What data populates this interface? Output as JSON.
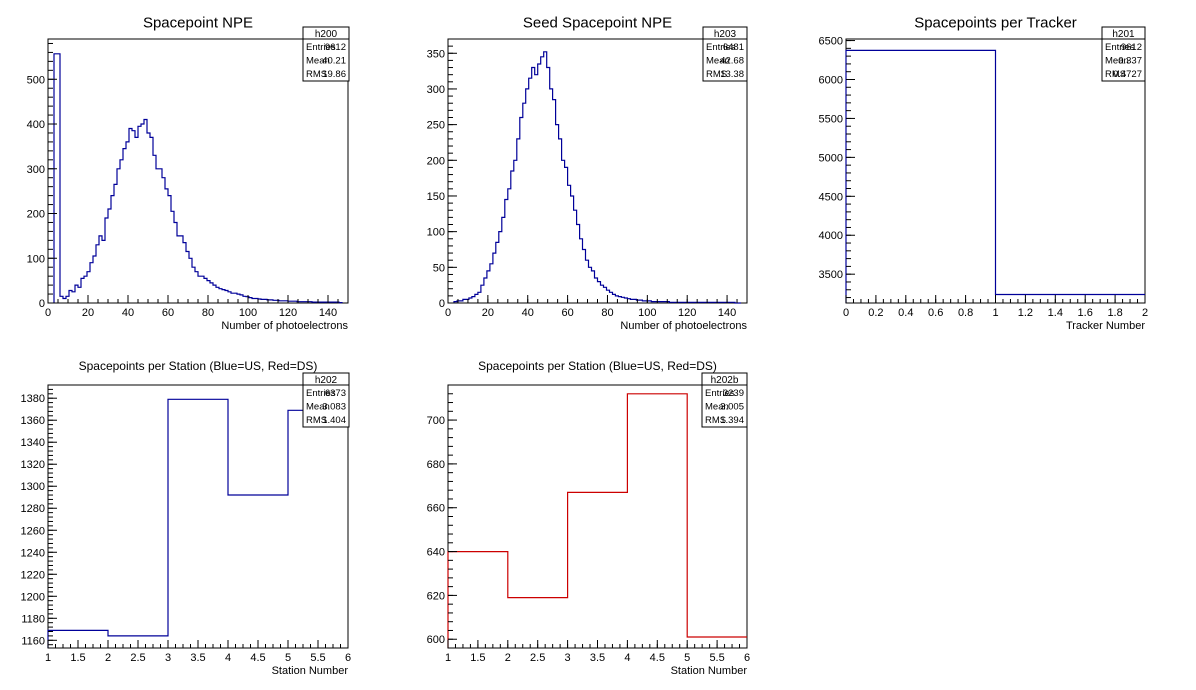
{
  "chart_data": [
    {
      "type": "bar",
      "title": "Spacepoint NPE",
      "xlabel": "Number of photoelectrons",
      "ylabel": "",
      "color": "#000099",
      "xlim": [
        0,
        150
      ],
      "ylim": [
        0,
        590
      ],
      "xticks": [
        "0",
        "20",
        "40",
        "60",
        "80",
        "100",
        "120",
        "140"
      ],
      "yticks": [
        "0",
        "100",
        "200",
        "300",
        "400",
        "500"
      ],
      "stats": {
        "name": "h200",
        "rows": [
          [
            "Entries",
            "9612"
          ],
          [
            "Mean",
            "40.21"
          ],
          [
            "RMS",
            "19.86"
          ]
        ]
      },
      "bin_width": 1.5,
      "x0": 3,
      "values": [
        557,
        557,
        15,
        10,
        15,
        28,
        25,
        40,
        35,
        55,
        60,
        70,
        90,
        105,
        130,
        150,
        140,
        190,
        210,
        240,
        265,
        300,
        320,
        345,
        360,
        390,
        385,
        370,
        395,
        400,
        410,
        380,
        370,
        330,
        300,
        300,
        280,
        255,
        240,
        205,
        180,
        150,
        150,
        135,
        115,
        100,
        80,
        70,
        60,
        60,
        55,
        50,
        45,
        40,
        35,
        32,
        30,
        28,
        25,
        22,
        22,
        20,
        18,
        15,
        14,
        12,
        10,
        10,
        9,
        8,
        8,
        7,
        7,
        6,
        6,
        5,
        5,
        5,
        4,
        4,
        4,
        3,
        3,
        3,
        3,
        3,
        2,
        2,
        2,
        2,
        2,
        2,
        2,
        2,
        2,
        1
      ]
    },
    {
      "type": "bar",
      "title": "Seed Spacepoint NPE",
      "xlabel": "Number of photoelectrons",
      "ylabel": "",
      "color": "#000099",
      "xlim": [
        0,
        150
      ],
      "ylim": [
        0,
        370
      ],
      "xticks": [
        "0",
        "20",
        "40",
        "60",
        "80",
        "100",
        "120",
        "140"
      ],
      "yticks": [
        "0",
        "50",
        "100",
        "150",
        "200",
        "250",
        "300",
        "350"
      ],
      "stats": {
        "name": "h203",
        "rows": [
          [
            "Entries",
            "6481"
          ],
          [
            "Mean",
            "42.68"
          ],
          [
            "RMS",
            "13.38"
          ]
        ]
      },
      "bin_width": 1.5,
      "x0": 3,
      "values": [
        2,
        3,
        3,
        5,
        5,
        7,
        9,
        12,
        15,
        25,
        35,
        45,
        55,
        70,
        85,
        100,
        120,
        145,
        160,
        185,
        200,
        230,
        260,
        280,
        300,
        315,
        330,
        320,
        335,
        345,
        352,
        330,
        300,
        285,
        250,
        230,
        200,
        190,
        165,
        150,
        130,
        110,
        90,
        75,
        60,
        50,
        45,
        35,
        30,
        25,
        22,
        18,
        15,
        12,
        10,
        9,
        8,
        7,
        6,
        5,
        5,
        4,
        4,
        3,
        3,
        3,
        2,
        2,
        2,
        2,
        2,
        2,
        1,
        1,
        1,
        1,
        1,
        1,
        1,
        1,
        1,
        1,
        1,
        1,
        1,
        1,
        1,
        1,
        1,
        1,
        1,
        1,
        1,
        1,
        0,
        0
      ]
    },
    {
      "type": "bar",
      "title": "Spacepoints per Tracker",
      "xlabel": "Tracker Number",
      "ylabel": "",
      "color": "#000099",
      "xlim": [
        0,
        2
      ],
      "ylim": [
        3130,
        6520
      ],
      "xticks": [
        "0",
        "0.2",
        "0.4",
        "0.6",
        "0.8",
        "1",
        "1.2",
        "1.4",
        "1.6",
        "1.8",
        "2"
      ],
      "yticks": [
        "3500",
        "4000",
        "4500",
        "5000",
        "5500",
        "6000",
        "6500"
      ],
      "stats": {
        "name": "h201",
        "rows": [
          [
            "Entries",
            "9612"
          ],
          [
            "Mean",
            "0.337"
          ],
          [
            "RMS",
            "0.4727"
          ]
        ]
      },
      "bin_width": 1,
      "x0": 0,
      "values": [
        6373,
        3239
      ]
    },
    {
      "type": "bar",
      "title": "Spacepoints per Station (Blue=US, Red=DS)",
      "xlabel": "Station Number",
      "ylabel": "",
      "color": "#000099",
      "xlim": [
        1,
        6
      ],
      "ylim": [
        1153,
        1392
      ],
      "xticks": [
        "1",
        "1.5",
        "2",
        "2.5",
        "3",
        "3.5",
        "4",
        "4.5",
        "5",
        "5.5",
        "6"
      ],
      "yticks": [
        "1160",
        "1180",
        "1200",
        "1220",
        "1240",
        "1260",
        "1280",
        "1300",
        "1320",
        "1340",
        "1360",
        "1380"
      ],
      "stats": {
        "name": "h202",
        "rows": [
          [
            "Entries",
            "6373"
          ],
          [
            "Mean",
            "3.083"
          ],
          [
            "RMS",
            "1.404"
          ]
        ]
      },
      "bin_width": 1,
      "x0": 1,
      "values": [
        1169,
        1164,
        1379,
        1292,
        1369
      ]
    },
    {
      "type": "bar",
      "title": "Spacepoints per Station (Blue=US, Red=DS)",
      "xlabel": "Station Number",
      "ylabel": "",
      "color": "#cc0000",
      "xlim": [
        1,
        6
      ],
      "ylim": [
        596,
        716
      ],
      "xticks": [
        "1",
        "1.5",
        "2",
        "2.5",
        "3",
        "3.5",
        "4",
        "4.5",
        "5",
        "5.5",
        "6"
      ],
      "yticks": [
        "600",
        "620",
        "640",
        "660",
        "680",
        "700"
      ],
      "stats": {
        "name": "h202b",
        "rows": [
          [
            "Entries",
            "3239"
          ],
          [
            "Mean",
            "3.005"
          ],
          [
            "RMS",
            "1.394"
          ]
        ]
      },
      "bin_width": 1,
      "x0": 1,
      "values": [
        640,
        619,
        667,
        712,
        601
      ]
    }
  ]
}
